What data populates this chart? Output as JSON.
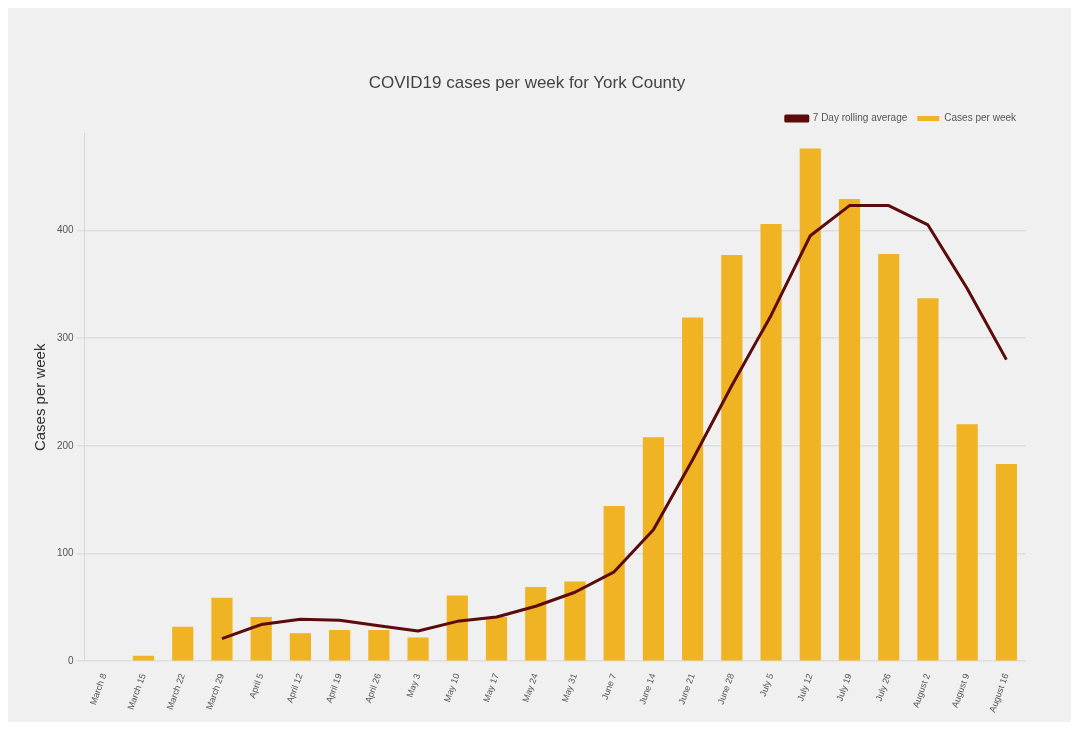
{
  "chart_data": {
    "type": "bar",
    "title": "COVID19 cases per week for York County",
    "ylabel": "Cases per week",
    "categories": [
      "March 8",
      "March 15",
      "March 22",
      "March 29",
      "April 5",
      "April 12",
      "April 19",
      "April 26",
      "May 3",
      "May 10",
      "May 17",
      "May 24",
      "May 31",
      "June 7",
      "June 14",
      "June 21",
      "June 28",
      "July 5",
      "July 12",
      "July 19",
      "July 26",
      "August 2",
      "August 9",
      "August 16"
    ],
    "series": [
      {
        "name": "7 Day rolling average",
        "type": "line",
        "color": "#5c0a0a",
        "values": [
          null,
          null,
          null,
          21,
          34,
          39,
          38,
          33,
          28,
          37,
          41,
          51,
          64,
          83,
          122,
          187,
          256,
          321,
          395,
          423,
          423,
          405,
          346,
          280
        ]
      },
      {
        "name": "Cases per week",
        "color": "#f0b323",
        "values": [
          0,
          5,
          32,
          59,
          41,
          26,
          29,
          29,
          22,
          61,
          41,
          69,
          74,
          144,
          208,
          319,
          377,
          406,
          476,
          429,
          378,
          337,
          220,
          183
        ]
      }
    ],
    "ylim": [
      0,
      490
    ],
    "yticks": [
      0,
      100,
      200,
      300,
      400
    ],
    "grid": "y",
    "legend": "top right",
    "marker": "none"
  }
}
